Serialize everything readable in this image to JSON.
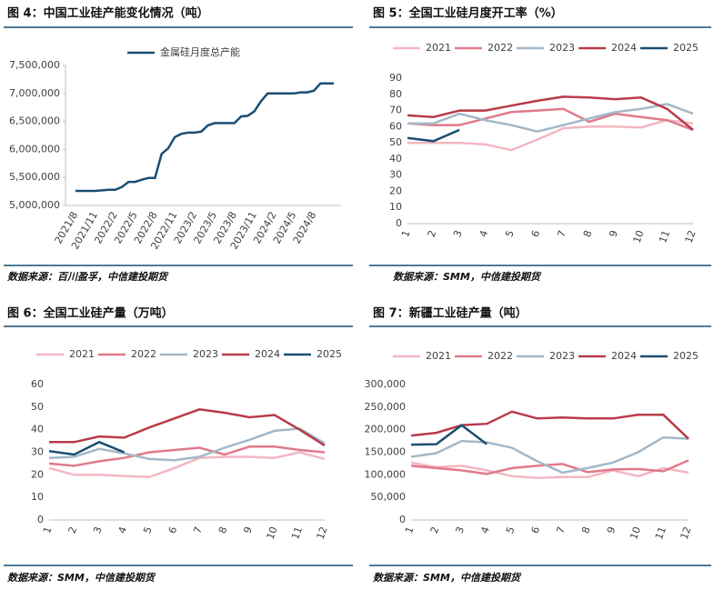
{
  "chart_data": [
    {
      "type": "line",
      "title": "图 4：中国工业硅产能变化情况（吨）",
      "source": "数据来源：百川盈孚，中信建投期货",
      "categories": [
        "2021/8",
        null,
        null,
        "2021/11",
        null,
        null,
        "2022/2",
        null,
        null,
        "2022/5",
        null,
        null,
        "2022/8",
        null,
        null,
        "2022/11",
        null,
        null,
        "2023/2",
        null,
        null,
        "2023/5",
        null,
        null,
        "2023/8",
        null,
        null,
        "2023/11",
        null,
        null,
        "2024/2",
        null,
        null,
        "2024/5",
        null,
        null,
        "2024/8",
        null,
        null,
        null
      ],
      "series": [
        {
          "name": "金属硅月度总产能",
          "color": "#1a4e73",
          "values": [
            5260000,
            5260000,
            5260000,
            5260000,
            5270000,
            5280000,
            5280000,
            5330000,
            5420000,
            5420000,
            5460000,
            5490000,
            5490000,
            5920000,
            6020000,
            6220000,
            6280000,
            6300000,
            6300000,
            6320000,
            6430000,
            6470000,
            6470000,
            6470000,
            6470000,
            6590000,
            6600000,
            6680000,
            6860000,
            7000000,
            7000000,
            7000000,
            7000000,
            7000000,
            7020000,
            7020000,
            7050000,
            7180000,
            7180000,
            7180000
          ]
        }
      ],
      "ylim": [
        5000000,
        7500000
      ],
      "yticks": [
        {
          "value": 5000000,
          "label": "5,000,000"
        },
        {
          "value": 5500000,
          "label": "5,500,000"
        },
        {
          "value": 6000000,
          "label": "6,000,000"
        },
        {
          "value": 6500000,
          "label": "6,500,000"
        },
        {
          "value": 7000000,
          "label": "7,000,000"
        },
        {
          "value": 7500000,
          "label": "7,500,000"
        }
      ]
    },
    {
      "type": "line",
      "title": "图 5：全国工业硅月度开工率（%）",
      "source": "数据来源：SMM，中信建投期货",
      "categories": [
        "1",
        "2",
        "3",
        "4",
        "5",
        "6",
        "7",
        "8",
        "9",
        "10",
        "11",
        "12"
      ],
      "series": [
        {
          "name": "2021",
          "color": "#f4b6c2",
          "values": [
            50,
            50,
            50,
            49,
            45.5,
            52,
            59,
            60,
            60,
            59.5,
            64,
            62
          ]
        },
        {
          "name": "2022",
          "color": "#e07a8a",
          "values": [
            62,
            61,
            61,
            65,
            69,
            70,
            71,
            63,
            68,
            66,
            64,
            58
          ]
        },
        {
          "name": "2023",
          "color": "#a3b8c8",
          "values": [
            62,
            62,
            68,
            64,
            61,
            57,
            61,
            65,
            69,
            71,
            74,
            68
          ]
        },
        {
          "name": "2024",
          "color": "#b83b4a",
          "values": [
            67,
            66,
            70,
            70,
            73,
            76,
            78.5,
            78,
            77,
            78,
            71,
            58
          ]
        },
        {
          "name": "2025",
          "color": "#1a4e73",
          "values": [
            53,
            51,
            58,
            null,
            null,
            null,
            null,
            null,
            null,
            null,
            null,
            null
          ]
        }
      ],
      "ylim": [
        0,
        90
      ],
      "yticks": [
        0,
        10,
        20,
        30,
        40,
        50,
        60,
        70,
        80,
        90
      ]
    },
    {
      "type": "line",
      "title": "图 6：全国工业硅产量（万吨）",
      "source": "数据来源：SMM，中信建投期货",
      "categories": [
        "1",
        "2",
        "3",
        "4",
        "5",
        "6",
        "7",
        "8",
        "9",
        "10",
        "11",
        "12"
      ],
      "series": [
        {
          "name": "2021",
          "color": "#f4b6c2",
          "values": [
            23,
            20,
            20,
            19.5,
            19,
            23,
            27.5,
            28,
            28,
            27.5,
            30,
            27
          ]
        },
        {
          "name": "2022",
          "color": "#e07a8a",
          "values": [
            25,
            24,
            26,
            27.5,
            30,
            31,
            32,
            29,
            32.5,
            32.5,
            31,
            30
          ]
        },
        {
          "name": "2023",
          "color": "#a3b8c8",
          "values": [
            27.5,
            28,
            31.5,
            29.5,
            27,
            26.5,
            28,
            32,
            35.5,
            39.5,
            40.5,
            34
          ]
        },
        {
          "name": "2024",
          "color": "#b83b4a",
          "values": [
            34.5,
            34.5,
            37,
            36.5,
            41,
            45,
            49,
            47.5,
            45.5,
            46.5,
            40,
            33
          ]
        },
        {
          "name": "2025",
          "color": "#1a4e73",
          "values": [
            30.5,
            29,
            34.5,
            30,
            null,
            null,
            null,
            null,
            null,
            null,
            null,
            null
          ]
        }
      ],
      "ylim": [
        0,
        60
      ],
      "yticks": [
        0,
        10,
        20,
        30,
        40,
        50,
        60
      ]
    },
    {
      "type": "line",
      "title": "图 7：新疆工业硅产量（吨）",
      "source": "数据来源：SMM，中信建投期货",
      "categories": [
        "1",
        "2",
        "3",
        "4",
        "5",
        "6",
        "7",
        "8",
        "9",
        "10",
        "11",
        "12"
      ],
      "series": [
        {
          "name": "2021",
          "color": "#f4b6c2",
          "values": [
            127000,
            117000,
            120000,
            110000,
            97000,
            93000,
            95000,
            95000,
            110000,
            97000,
            115000,
            105000
          ]
        },
        {
          "name": "2022",
          "color": "#e07a8a",
          "values": [
            120000,
            115000,
            110000,
            102000,
            115000,
            120000,
            124000,
            106000,
            112000,
            113000,
            108000,
            132000
          ]
        },
        {
          "name": "2023",
          "color": "#a3b8c8",
          "values": [
            140000,
            148000,
            175000,
            172000,
            160000,
            130000,
            105000,
            115000,
            127000,
            150000,
            183000,
            180000
          ]
        },
        {
          "name": "2024",
          "color": "#b83b4a",
          "values": [
            187000,
            193000,
            210000,
            213000,
            240000,
            225000,
            227000,
            225000,
            225000,
            233000,
            233000,
            180000
          ]
        },
        {
          "name": "2025",
          "color": "#1a4e73",
          "values": [
            167000,
            168000,
            210000,
            168000,
            null,
            null,
            null,
            null,
            null,
            null,
            null,
            null
          ]
        }
      ],
      "ylim": [
        0,
        300000
      ],
      "yticks": [
        0,
        {
          "value": 50000,
          "label": "50,000"
        },
        {
          "value": 100000,
          "label": "100,000"
        },
        {
          "value": 150000,
          "label": "150,000"
        },
        {
          "value": 200000,
          "label": "200,000"
        },
        {
          "value": 250000,
          "label": "250,000"
        },
        {
          "value": 300000,
          "label": "300,000"
        }
      ]
    }
  ]
}
